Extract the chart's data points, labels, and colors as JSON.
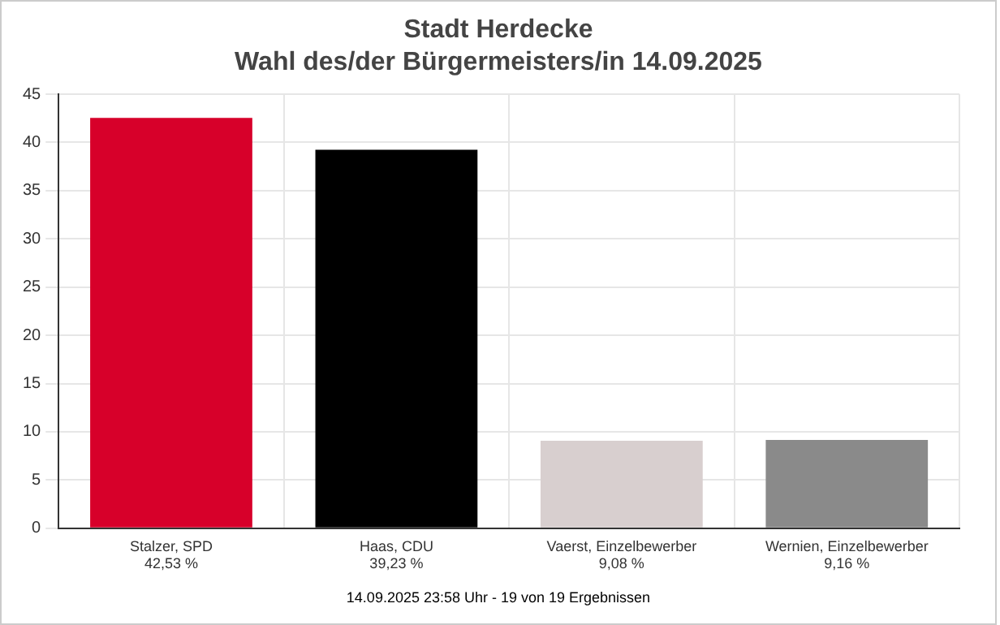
{
  "chart_data": {
    "type": "bar",
    "title": "Stadt Herdecke",
    "subtitle": "Wahl des/der Bürgermeisters/in 14.09.2025",
    "categories": [
      "Stalzer, SPD",
      "Haas, CDU",
      "Vaerst, Einzelbewerber",
      "Wernien, Einzelbewerber"
    ],
    "values": [
      42.53,
      39.23,
      9.08,
      9.16
    ],
    "value_labels": [
      "42,53 %",
      "39,23 %",
      "9,08 %",
      "9,16 %"
    ],
    "colors": [
      "#d7002a",
      "#000000",
      "#d8cfcf",
      "#8a8a8a"
    ],
    "ylim": [
      0,
      45
    ],
    "yticks": [
      0,
      5,
      10,
      15,
      20,
      25,
      30,
      35,
      40,
      45
    ],
    "grid": true,
    "legend": false,
    "annotations": [
      "14.09.2025 23:58 Uhr - 19 von 19 Ergebnissen"
    ]
  }
}
